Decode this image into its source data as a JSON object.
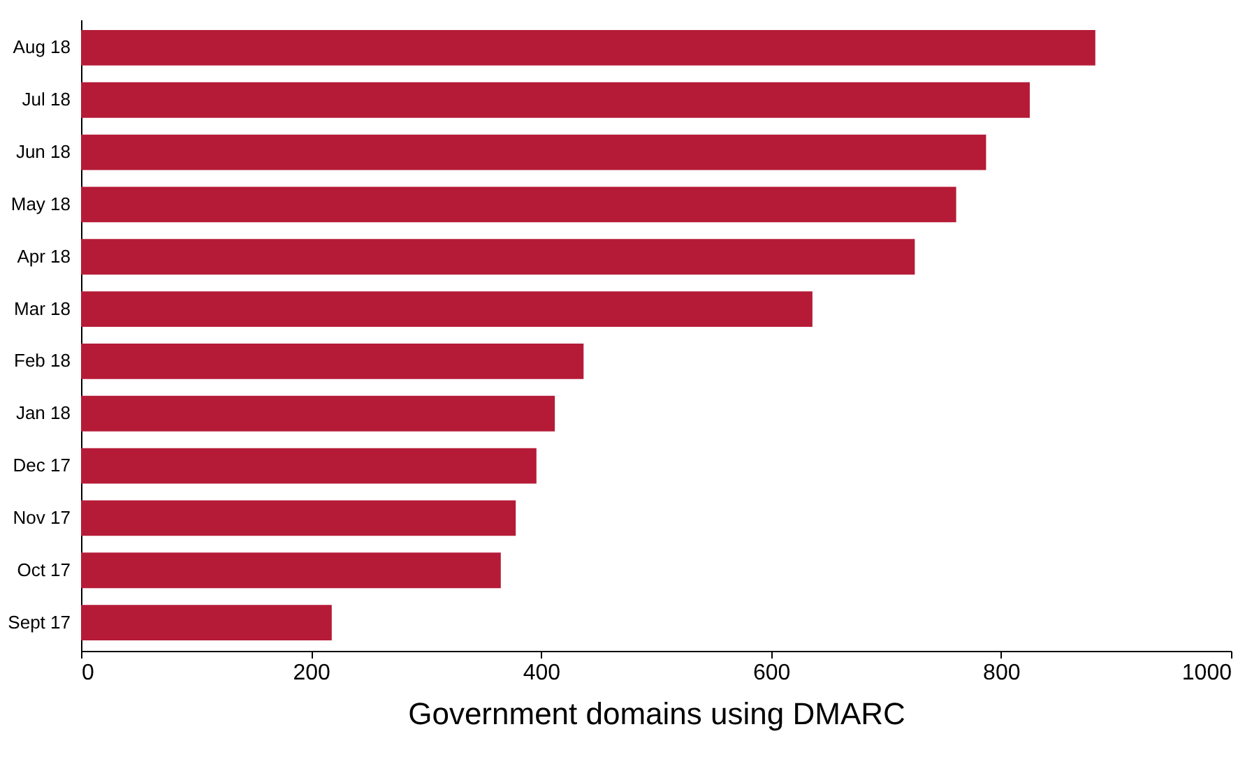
{
  "chart_data": {
    "type": "bar",
    "orientation": "horizontal",
    "xlabel": "Government domains using DMARC",
    "categories": [
      "Aug 18",
      "Jul 18",
      "Jun 18",
      "May 18",
      "Apr 18",
      "Mar 18",
      "Feb 18",
      "Jan 18",
      "Dec 17",
      "Nov 17",
      "Oct 17",
      "Sept 17"
    ],
    "values": [
      882,
      825,
      787,
      761,
      725,
      636,
      437,
      412,
      396,
      378,
      365,
      218
    ],
    "color": "#b51b37",
    "xlim": [
      0,
      1000
    ],
    "xticks": [
      0,
      200,
      400,
      600,
      800,
      1000
    ],
    "grid": false
  }
}
